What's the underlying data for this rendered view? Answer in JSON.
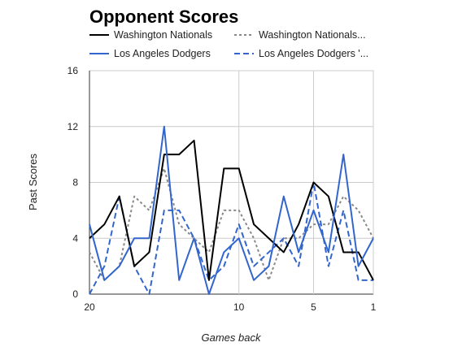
{
  "chart_data": {
    "type": "line",
    "title": "Opponent Scores",
    "xlabel": "Games back",
    "ylabel": "Past Scores",
    "ylim": [
      0,
      16
    ],
    "yticks": [
      0,
      4,
      8,
      12,
      16
    ],
    "xlim": [
      20,
      1
    ],
    "xticks": [
      20,
      10,
      5,
      1
    ],
    "grid": true,
    "legend_position": "top",
    "x": [
      20,
      19,
      18,
      17,
      16,
      15,
      14,
      13,
      12,
      11,
      10,
      9,
      8,
      7,
      6,
      5,
      4,
      3,
      2,
      1
    ],
    "series": [
      {
        "name": "Washington Nationals",
        "color": "#000000",
        "style": "solid",
        "values": [
          4,
          5,
          7,
          2,
          3,
          10,
          10,
          11,
          1,
          9,
          9,
          5,
          4,
          3,
          5,
          8,
          7,
          3,
          3,
          1
        ]
      },
      {
        "name": "Washington Nationals...",
        "color": "#888888",
        "style": "dotted",
        "values": [
          3,
          1,
          2,
          7,
          6,
          9,
          5,
          4,
          3,
          6,
          6,
          4,
          1,
          4,
          4,
          5,
          5,
          7,
          6,
          4
        ]
      },
      {
        "name": "Los Angeles Dodgers",
        "color": "#3366cc",
        "style": "solid",
        "values": [
          5,
          1,
          2,
          4,
          4,
          12,
          1,
          4,
          0,
          3,
          4,
          1,
          2,
          7,
          3,
          6,
          3,
          10,
          2,
          4
        ]
      },
      {
        "name": "Los Angeles Dodgers '...",
        "color": "#3366cc",
        "style": "dashed",
        "values": [
          0,
          2,
          7,
          2,
          0,
          6,
          6,
          4,
          1,
          2,
          5,
          2,
          3,
          4,
          2,
          8,
          2,
          6,
          1,
          1
        ]
      }
    ]
  }
}
